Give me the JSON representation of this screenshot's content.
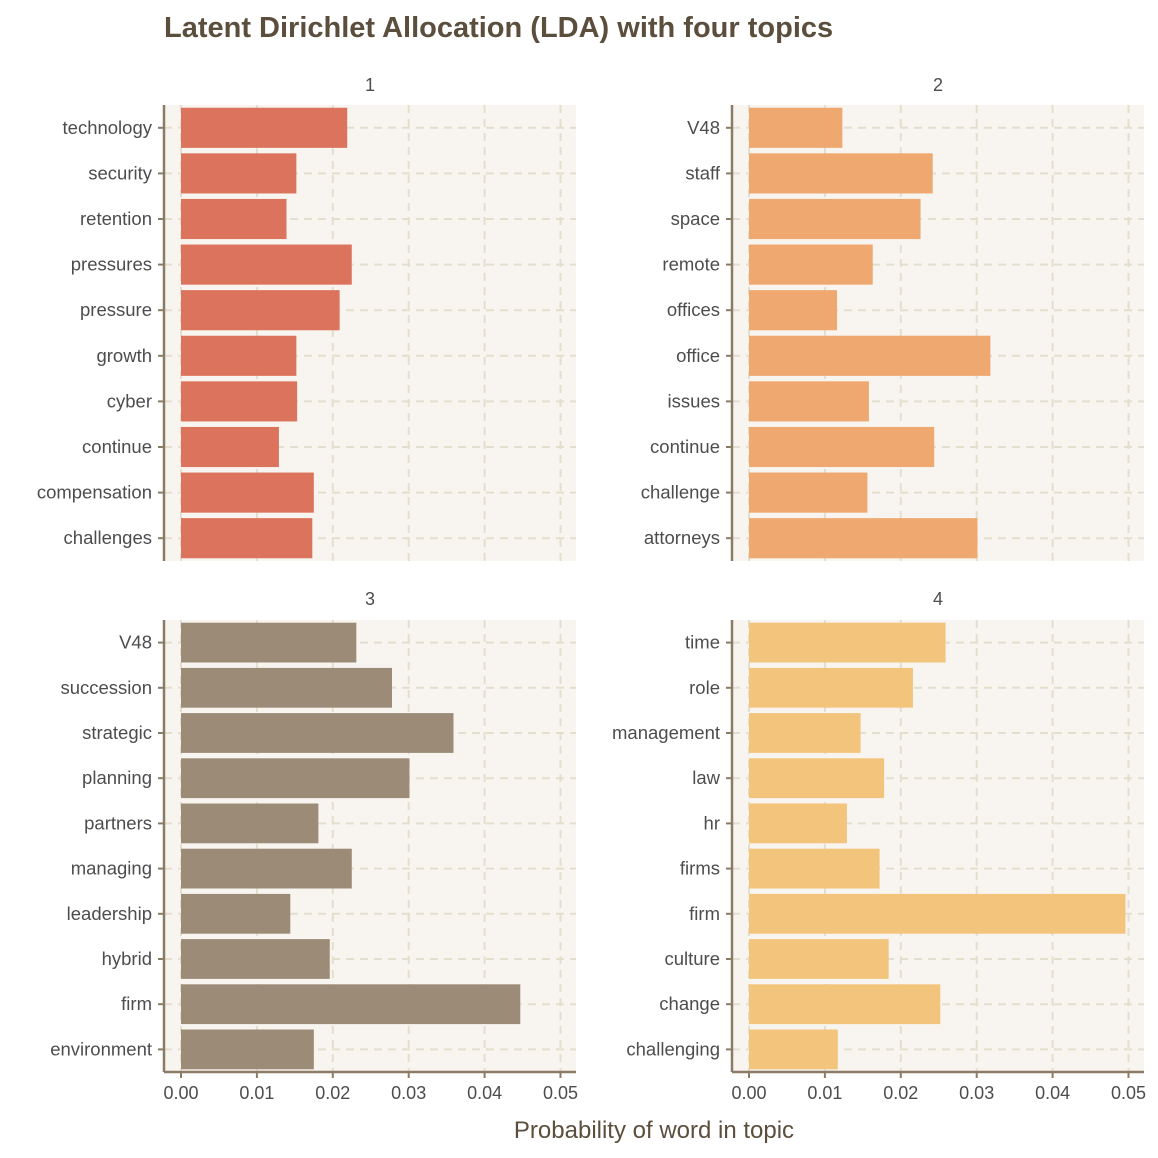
{
  "chart_data": {
    "type": "bar",
    "orientation": "horizontal",
    "title": "Latent Dirichlet Allocation (LDA) with four topics",
    "xlabel": "Probability of word in topic",
    "xlim": [
      0,
      0.05
    ],
    "xticks": [
      "0.00",
      "0.01",
      "0.02",
      "0.03",
      "0.04",
      "0.05"
    ],
    "grid": true,
    "facets": [
      {
        "label": "1",
        "color": "#dc735d",
        "terms": [
          "technology",
          "security",
          "retention",
          "pressures",
          "pressure",
          "growth",
          "cyber",
          "continue",
          "compensation",
          "challenges"
        ],
        "values": [
          0.0219,
          0.0152,
          0.0139,
          0.0225,
          0.0209,
          0.0152,
          0.0153,
          0.0129,
          0.0175,
          0.0173
        ]
      },
      {
        "label": "2",
        "color": "#eea870",
        "terms": [
          "V48",
          "staff",
          "space",
          "remote",
          "offices",
          "office",
          "issues",
          "continue",
          "challenge",
          "attorneys"
        ],
        "values": [
          0.0123,
          0.0242,
          0.0226,
          0.0163,
          0.0116,
          0.0318,
          0.0158,
          0.0244,
          0.0156,
          0.0301
        ]
      },
      {
        "label": "3",
        "color": "#9c8b76",
        "terms": [
          "V48",
          "succession",
          "strategic",
          "planning",
          "partners",
          "managing",
          "leadership",
          "hybrid",
          "firm",
          "environment"
        ],
        "values": [
          0.0231,
          0.0278,
          0.0359,
          0.0301,
          0.0181,
          0.0225,
          0.0144,
          0.0196,
          0.0447,
          0.0175
        ]
      },
      {
        "label": "4",
        "color": "#f3c47b",
        "terms": [
          "time",
          "role",
          "management",
          "law",
          "hr",
          "firms",
          "firm",
          "culture",
          "change",
          "challenging"
        ],
        "values": [
          0.0259,
          0.0216,
          0.0147,
          0.0178,
          0.0129,
          0.0172,
          0.0496,
          0.0184,
          0.0252,
          0.0117
        ]
      }
    ]
  },
  "colors": {
    "panel_background": "#f8f4ef",
    "grid": "#e3dfcf",
    "axis": "#8c7b66",
    "title": "#5c4e3d"
  }
}
